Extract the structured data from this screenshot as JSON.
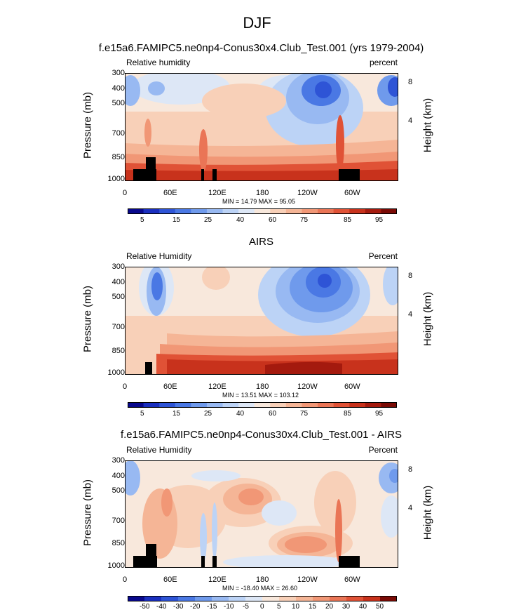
{
  "main_title": "DJF",
  "chart_data": [
    {
      "type": "heatmap",
      "title": "f.e15a6.FAMIPC5.ne0np4-Conus30x4.Club_Test.001 (yrs 1979-2004)",
      "left_label": "Relative humidity",
      "right_label": "percent",
      "ylabel": "Pressure (mb)",
      "ylabel_right": "Height (km)",
      "pressure_ticks": [
        "300",
        "400",
        "500",
        "700",
        "850",
        "1000"
      ],
      "height_ticks": [
        "8",
        "4"
      ],
      "x_ticks": [
        "0",
        "60E",
        "120E",
        "180",
        "120W",
        "60W"
      ],
      "stats": "MIN =  14.79   MAX =  95.05",
      "colorbar_labels": [
        "5",
        "15",
        "25",
        "40",
        "60",
        "75",
        "85",
        "95"
      ]
    },
    {
      "type": "heatmap",
      "title": "AIRS",
      "left_label": "Relative Humidity",
      "right_label": "Percent",
      "ylabel": "Pressure (mb)",
      "ylabel_right": "Height (km)",
      "pressure_ticks": [
        "300",
        "400",
        "500",
        "700",
        "850",
        "1000"
      ],
      "height_ticks": [
        "8",
        "4"
      ],
      "x_ticks": [
        "0",
        "60E",
        "120E",
        "180",
        "120W",
        "60W"
      ],
      "stats": "MIN =  13.51   MAX = 103.12",
      "colorbar_labels": [
        "5",
        "15",
        "25",
        "40",
        "60",
        "75",
        "85",
        "95"
      ]
    },
    {
      "type": "heatmap",
      "title": "f.e15a6.FAMIPC5.ne0np4-Conus30x4.Club_Test.001 - AIRS",
      "left_label": "Relative Humidity",
      "right_label": "Percent",
      "ylabel": "Pressure (mb)",
      "ylabel_right": "Height (km)",
      "pressure_ticks": [
        "300",
        "400",
        "500",
        "700",
        "850",
        "1000"
      ],
      "height_ticks": [
        "8",
        "4"
      ],
      "x_ticks": [
        "0",
        "60E",
        "120E",
        "180",
        "120W",
        "60W"
      ],
      "stats": "MIN = -18.40   MAX =  26.60",
      "colorbar_labels": [
        "-50",
        "-40",
        "-30",
        "-20",
        "-15",
        "-10",
        "-5",
        "0",
        "5",
        "10",
        "15",
        "20",
        "30",
        "40",
        "50"
      ]
    }
  ],
  "colors": {
    "abs_scale": [
      "#08088c",
      "#1a2fbf",
      "#2e54d6",
      "#4a78e4",
      "#6f9aec",
      "#98b9f2",
      "#bcd3f6",
      "#dde7f6",
      "#f8e8dc",
      "#f8d0b8",
      "#f5b596",
      "#f19776",
      "#ea7556",
      "#e05236",
      "#c8321c",
      "#a41a0e",
      "#7a0a05"
    ],
    "diff_scale": [
      "#08088c",
      "#1a2fbf",
      "#2e54d6",
      "#4a78e4",
      "#6f9aec",
      "#98b9f2",
      "#bcd3f6",
      "#dde7f6",
      "#f8e8dc",
      "#f8d0b8",
      "#f5b596",
      "#f19776",
      "#ea7556",
      "#e05236",
      "#c8321c",
      "#7a0a05"
    ],
    "topography": "#000000"
  }
}
